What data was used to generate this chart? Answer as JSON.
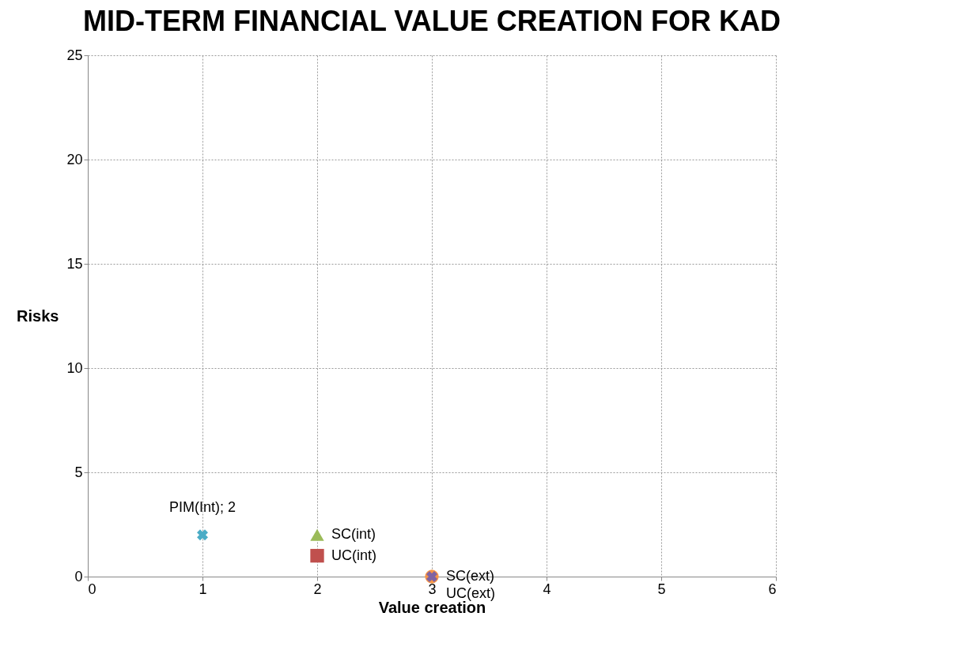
{
  "chart_data": {
    "type": "scatter",
    "title": "MID-TERM FINANCIAL VALUE CREATION FOR KAD",
    "xlabel": "Value creation",
    "ylabel": "Risks",
    "xlim": [
      0,
      6
    ],
    "xticks": [
      0,
      1,
      2,
      3,
      4,
      5,
      6
    ],
    "ylim": [
      0,
      25
    ],
    "yticks": [
      0,
      5,
      10,
      15,
      20,
      25
    ],
    "grid": true,
    "series": [
      {
        "color": "#4bacc6",
        "marker": "cross",
        "x": [
          1
        ],
        "values": [
          2
        ],
        "value_labels": [
          "PIM(Int); 2"
        ]
      },
      {
        "name": "SC(int)",
        "color": "#9bbb59",
        "marker": "triangle",
        "x": [
          2
        ],
        "values": [
          2
        ]
      },
      {
        "name": "UC(int)",
        "color": "#c0504d",
        "marker": "square",
        "x": [
          2
        ],
        "values": [
          1
        ]
      },
      {
        "name": "SC(ext)",
        "color": "#f79646",
        "marker": "circle",
        "x": [
          3
        ],
        "values": [
          0
        ]
      },
      {
        "name": "UC(ext)",
        "color": "#8064a2",
        "marker": "cross",
        "x": [
          3
        ],
        "values": [
          0
        ]
      }
    ]
  }
}
